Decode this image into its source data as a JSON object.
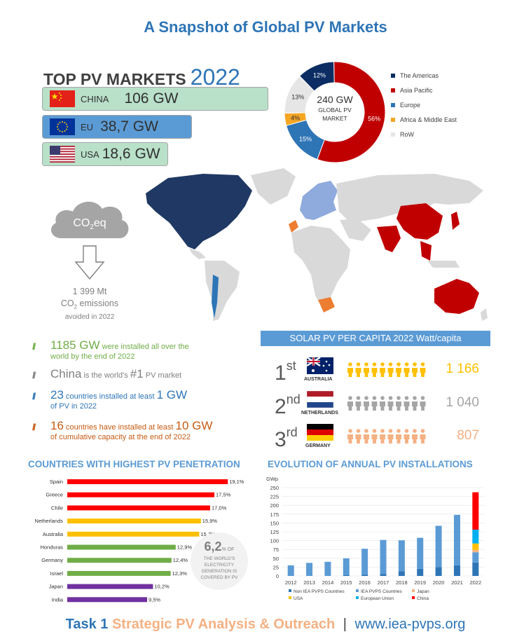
{
  "title": "A Snapshot of Global PV Markets",
  "top_markets": {
    "heading": "TOP PV MARKETS",
    "year": "2022",
    "items": [
      {
        "name": "CHINA",
        "value": "106 GW",
        "color": "#b9e0c9"
      },
      {
        "name": "EU",
        "value": "38,7 GW",
        "color": "#5b9bd5"
      },
      {
        "name": "USA",
        "value": "18,6 GW",
        "color": "#b9e0c9"
      }
    ]
  },
  "global_market": {
    "center_value": "240 GW",
    "center_line1": "GLOBAL PV",
    "center_line2": "MARKET",
    "slices": [
      {
        "name": "Asia Pacific",
        "percent": 56,
        "label": "56%",
        "color": "#c00000"
      },
      {
        "name": "Europe",
        "percent": 15,
        "label": "15%",
        "color": "#2e75b6"
      },
      {
        "name": "Africa & Middle East",
        "percent": 4,
        "label": "4%",
        "color": "#f5a623"
      },
      {
        "name": "RoW",
        "percent": 13,
        "label": "13%",
        "color": "#e7e6e6"
      },
      {
        "name": "The Americas",
        "percent": 12,
        "label": "12%",
        "color": "#0b2d63"
      }
    ],
    "legend": [
      {
        "name": "The Americas",
        "color": "#0b2d63"
      },
      {
        "name": "Asia Pacific",
        "color": "#c00000"
      },
      {
        "name": "Europe",
        "color": "#2e75b6"
      },
      {
        "name": "Africa & Middle East",
        "color": "#f5a623"
      },
      {
        "name": "RoW",
        "color": "#e7e6e6"
      }
    ]
  },
  "co2": {
    "cloud_label": "CO",
    "cloud_sub": "2",
    "cloud_suffix": "eq",
    "amount": "1 399 Mt",
    "line2a": "CO",
    "line2sub": "2",
    "line2b": " emissions",
    "line3": "avoided in 2022"
  },
  "facts": [
    {
      "big": "1185 GW",
      "rest": " were installed all over the",
      "line2": "world by the end of 2022",
      "color": "#70ad47"
    },
    {
      "big": "China",
      "rest": " is the world's ",
      "big2": "#1",
      "rest2": " PV market",
      "color": "#808080"
    },
    {
      "big": "23",
      "rest": " countries installed at least ",
      "big2": "1 GW",
      "line2": "of PV in 2022",
      "color": "#2e75b6"
    },
    {
      "big": "16",
      "rest": " countries have installed at least ",
      "big2": "10 GW",
      "line2": "of cumulative capacity at the end of 2022",
      "color": "#c55a11"
    }
  ],
  "per_capita": {
    "heading": "SOLAR PV PER CAPITA 2022 Watt/capita",
    "rows": [
      {
        "rank": "1",
        "suffix": "st",
        "country": "AUSTRALIA",
        "value": "1 166",
        "color": "#ffc000"
      },
      {
        "rank": "2",
        "suffix": "nd",
        "country": "NETHERLANDS",
        "value": "1 040",
        "color": "#a5a5a5"
      },
      {
        "rank": "3",
        "suffix": "rd",
        "country": "GERMANY",
        "value": "807",
        "color": "#f4b183"
      }
    ]
  },
  "penetration": {
    "heading": "COUNTRIES WITH HIGHEST PV PENETRATION",
    "badge_value": "6,2",
    "badge_unit": "% OF",
    "badge_lines": [
      "THE WORLD'S",
      "ELECTRICITY",
      "GENERATION IS",
      "COVERED BY PV"
    ]
  },
  "evolution": {
    "heading": "EVOLUTION OF ANNUAL PV INSTALLATIONS"
  },
  "chart_data": [
    {
      "type": "bar",
      "orientation": "horizontal",
      "categories": [
        "Spain",
        "Greece",
        "Chile",
        "Netherlands",
        "Australia",
        "Honduras",
        "Germany",
        "Israel",
        "Japan",
        "India"
      ],
      "values": [
        19.1,
        17.5,
        17.0,
        15.9,
        15.7,
        12.9,
        12.4,
        12.3,
        10.2,
        9.5
      ],
      "labels": [
        "19,1%",
        "17,5%",
        "17,0%",
        "15,9%",
        "15,7%",
        "12,9%",
        "12,4%",
        "12,3%",
        "10,2%",
        "9,5%"
      ],
      "colors": [
        "#ff0000",
        "#ff0000",
        "#ff0000",
        "#ffc000",
        "#ffc000",
        "#70ad47",
        "#70ad47",
        "#70ad47",
        "#7030a0",
        "#7030a0"
      ],
      "xlim": [
        0,
        20
      ]
    },
    {
      "type": "bar",
      "stacked": true,
      "categories": [
        "2012",
        "2013",
        "2014",
        "2015",
        "2016",
        "2017",
        "2018",
        "2019",
        "2020",
        "2021",
        "2022"
      ],
      "ylabel": "GWp",
      "ylim": [
        0,
        250
      ],
      "yticks": [
        0,
        25,
        50,
        75,
        100,
        125,
        150,
        175,
        200,
        225,
        250
      ],
      "series": [
        {
          "name": "Non IEA PVPS Countries",
          "color": "#2e75b6",
          "values": [
            0,
            0,
            0,
            2,
            3,
            5,
            13,
            20,
            25,
            30,
            38
          ]
        },
        {
          "name": "IEA PVPS Countries",
          "color": "#5b9bd5",
          "values": [
            30,
            37,
            40,
            48,
            74,
            97,
            88,
            88,
            117,
            143,
            29
          ]
        },
        {
          "name": "Japan",
          "color": "#f4b183",
          "values": [
            0,
            0,
            0,
            0,
            0,
            0,
            0,
            0,
            0,
            0,
            7
          ]
        },
        {
          "name": "USA",
          "color": "#ffc000",
          "values": [
            0,
            0,
            0,
            0,
            0,
            0,
            0,
            0,
            0,
            0,
            18
          ]
        },
        {
          "name": "European Union",
          "color": "#00b0f0",
          "values": [
            0,
            0,
            0,
            0,
            0,
            0,
            0,
            0,
            0,
            0,
            39
          ]
        },
        {
          "name": "China",
          "color": "#ff0000",
          "values": [
            0,
            0,
            0,
            0,
            0,
            0,
            0,
            0,
            0,
            0,
            106
          ]
        }
      ]
    }
  ],
  "footer": {
    "part1": "Task 1",
    "part2": "Strategic PV Analysis & Outreach",
    "sep": "|",
    "url": "www.iea-pvps.org"
  }
}
